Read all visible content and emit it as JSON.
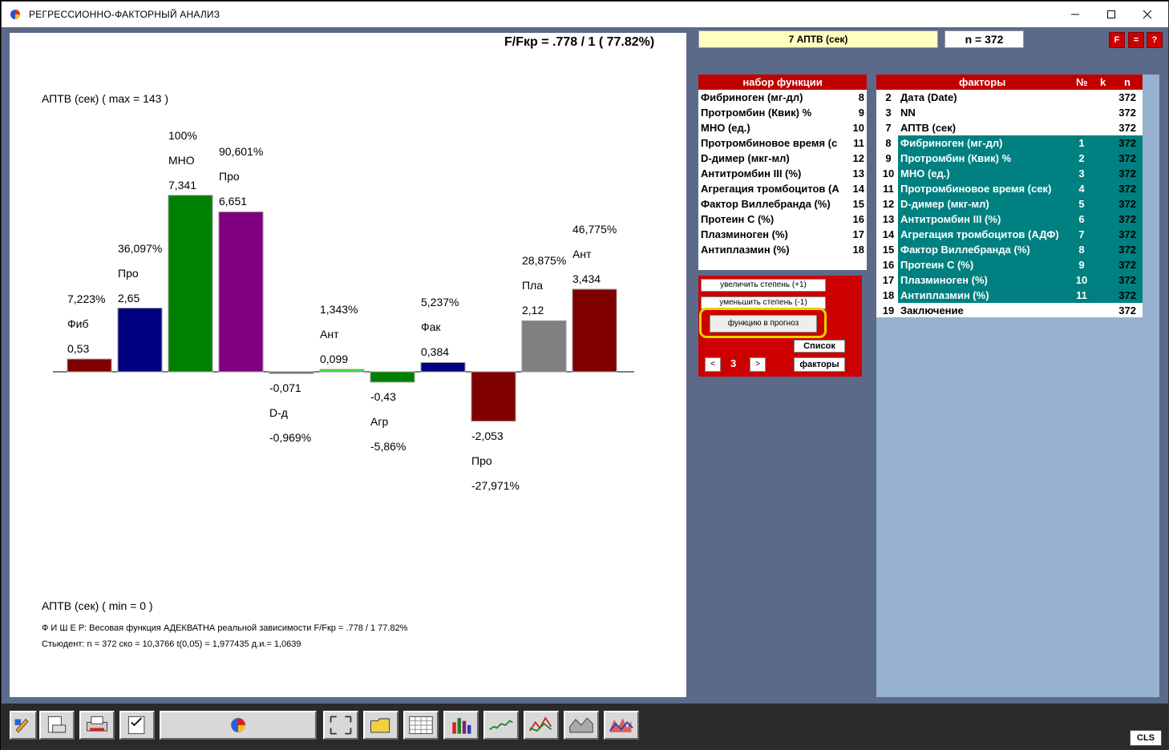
{
  "window": {
    "title": "РЕГРЕССИОННО-ФАКТОРНЫЙ АНАЛИЗ",
    "min_icon": "minimize-icon",
    "max_icon": "maximize-icon",
    "close_icon": "close-icon"
  },
  "canvas": {
    "ratio_text": "F/Fкр =  .778 /  1   ( 77.82%)",
    "max_label": "АПТВ (сек) ( max = 143 )",
    "min_label": "АПТВ (сек) ( min = 0 )",
    "fisher_line": "Ф И Ш Е Р: Весовая функция АДЕКВАТНА  реальной зависимости  F/Fкр =  .778 /  1    77.82%",
    "student_line": "Стьюдент:  n =  372   ско = 10,3766   t(0,05) = 1,977435   д.и.= 1,0639"
  },
  "chart_data": {
    "type": "bar",
    "categories": [
      "Фиб",
      "Про",
      "МНО",
      "Про",
      "D-д",
      "Ант",
      "Агр",
      "Фак",
      "Про",
      "Пла",
      "Ант"
    ],
    "values": [
      0.53,
      2.65,
      7.341,
      6.651,
      -0.071,
      0.099,
      -0.43,
      0.384,
      -2.053,
      2.12,
      3.434
    ],
    "value_labels": [
      "0,53",
      "2,65",
      "7,341",
      "6,651",
      "-0,071",
      "0,099",
      "-0,43",
      "0,384",
      "-2,053",
      "2,12",
      "3,434"
    ],
    "percent_labels": [
      "7,223%",
      "36,097%",
      "100%",
      "90,601%",
      "-0,969%",
      "1,343%",
      "-5,86%",
      "5,237%",
      "-27,971%",
      "28,875%",
      "46,775%"
    ],
    "colors": [
      "#800000",
      "#000080",
      "#008000",
      "#800080",
      "#606060",
      "#33dd33",
      "#008000",
      "#000080",
      "#800000",
      "#808080",
      "#800000"
    ]
  },
  "header": {
    "current_var": "7  АПТВ (сек)",
    "n_text": "n = 372",
    "btn_f": "F",
    "btn_eq": "=",
    "btn_q": "?"
  },
  "func_panel": {
    "title": "набор функции",
    "items": [
      {
        "name": "Фибриноген (мг-дл)",
        "no": "8"
      },
      {
        "name": "Протромбин (Квик) %",
        "no": "9"
      },
      {
        "name": "МНО (ед.)",
        "no": "10"
      },
      {
        "name": "Протромбиновое время  (с",
        "no": "11"
      },
      {
        "name": "D-димер (мкг-мл)",
        "no": "12"
      },
      {
        "name": "Антитромбин III (%)",
        "no": "13"
      },
      {
        "name": "Агрегация тромбоцитов  (А",
        "no": "14"
      },
      {
        "name": "Фактор Виллебранда (%)",
        "no": "15"
      },
      {
        "name": "Протеин С (%)",
        "no": "16"
      },
      {
        "name": "Плазминоген (%)",
        "no": "17"
      },
      {
        "name": "Антиплазмин (%)",
        "no": "18"
      }
    ]
  },
  "controls": {
    "inc_label": "увеличить степень (+1)",
    "dec_label": "уменьшить степень (-1)",
    "forecast_label": "функцию в прогноз",
    "list_label": "Список",
    "factors_label": "факторы",
    "prev": "<",
    "next": ">",
    "degree": "3"
  },
  "fac_panel": {
    "title": "факторы",
    "col_no": "№",
    "col_k": "k",
    "col_n": "n",
    "rows": [
      {
        "num": "2",
        "name": "Дата (Date)",
        "k": "",
        "n": "372",
        "sel": false
      },
      {
        "num": "3",
        "name": "NN",
        "k": "",
        "n": "372",
        "sel": false
      },
      {
        "num": "7",
        "name": "АПТВ (сек)",
        "k": "",
        "n": "372",
        "sel": false
      },
      {
        "num": "8",
        "name": "Фибриноген (мг-дл)",
        "k": "1",
        "n": "372",
        "sel": true
      },
      {
        "num": "9",
        "name": "Протромбин (Квик) %",
        "k": "2",
        "n": "372",
        "sel": true
      },
      {
        "num": "10",
        "name": "МНО (ед.)",
        "k": "3",
        "n": "372",
        "sel": true
      },
      {
        "num": "11",
        "name": "Протромбиновое время  (сек)",
        "k": "4",
        "n": "372",
        "sel": true
      },
      {
        "num": "12",
        "name": "D-димер (мкг-мл)",
        "k": "5",
        "n": "372",
        "sel": true
      },
      {
        "num": "13",
        "name": "Антитромбин III (%)",
        "k": "6",
        "n": "372",
        "sel": true
      },
      {
        "num": "14",
        "name": "Агрегация тромбоцитов  (АДФ)",
        "k": "7",
        "n": "372",
        "sel": true
      },
      {
        "num": "15",
        "name": "Фактор Виллебранда (%)",
        "k": "8",
        "n": "372",
        "sel": true
      },
      {
        "num": "16",
        "name": "Протеин С (%)",
        "k": "9",
        "n": "372",
        "sel": true
      },
      {
        "num": "17",
        "name": "Плазминоген (%)",
        "k": "10",
        "n": "372",
        "sel": true
      },
      {
        "num": "18",
        "name": "Антиплазмин (%)",
        "k": "11",
        "n": "372",
        "sel": true
      },
      {
        "num": "19",
        "name": "Заключение",
        "k": "",
        "n": "372",
        "sel": false
      }
    ]
  },
  "toolbar": {
    "icons": [
      "edit-icon",
      "print-preview-icon",
      "printer-icon",
      "checklist-icon",
      "pie-chart-icon",
      "fullscreen-icon",
      "folder-icon",
      "table-icon",
      "bar-chart-icon",
      "scatter-icon",
      "line-chart-icon",
      "area-chart-icon",
      "surface-icon"
    ],
    "cls_label": "CLS"
  }
}
